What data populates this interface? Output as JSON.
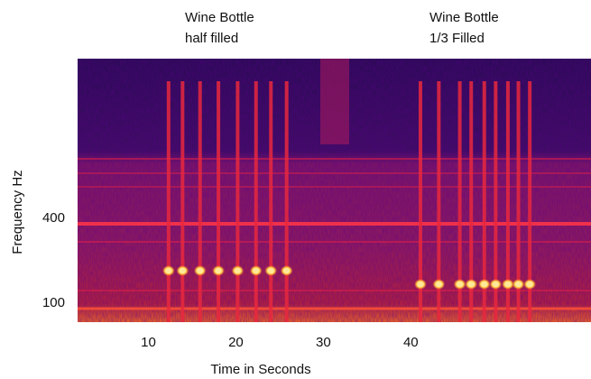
{
  "chart_data": {
    "type": "spectrogram",
    "annotations": [
      [
        "Wine Bottle",
        "half filled"
      ],
      [
        "Wine Bottle",
        "1/3 Filled"
      ]
    ],
    "x_label": "Time in Seconds",
    "y_label": "Frequency Hz",
    "xlim": [
      1.9,
      60.6
    ],
    "xticks": [
      10,
      20,
      30,
      40
    ],
    "ylim": [
      33,
      965
    ],
    "yticks": [
      100,
      400
    ],
    "series": [
      {
        "color": "#ffe89a",
        "x": [
          12.3,
          13.9,
          15.9,
          18.0,
          20.2,
          22.3,
          24.0,
          25.8
        ],
        "values": [
          215,
          215,
          215,
          215,
          215,
          215,
          215,
          215
        ]
      },
      {
        "color": "#ffe89a",
        "x": [
          41.1,
          43.2,
          45.6,
          46.9,
          48.4,
          49.7,
          51.1,
          52.3,
          53.6
        ],
        "values": [
          167,
          167,
          167,
          167,
          167,
          167,
          167,
          167,
          167
        ]
      }
    ]
  }
}
